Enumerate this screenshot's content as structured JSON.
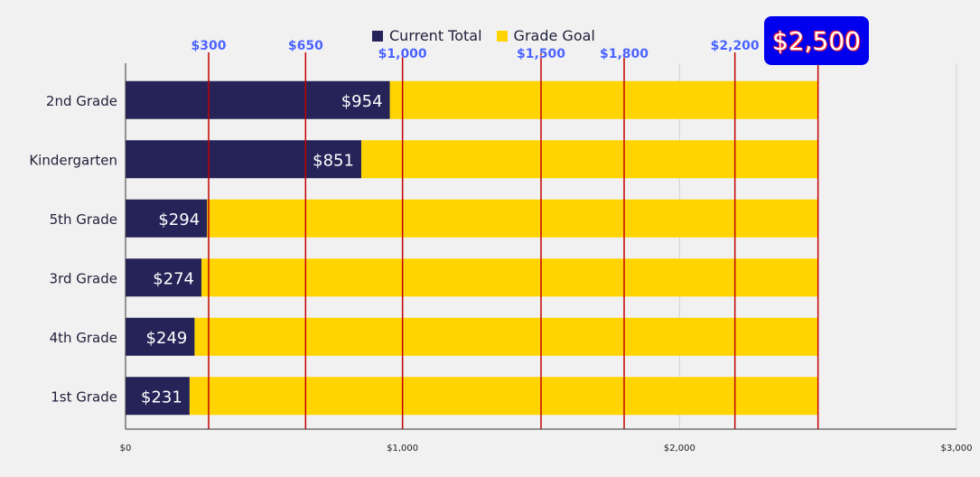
{
  "chart_data": {
    "type": "bar",
    "orientation": "horizontal",
    "stacked": true,
    "categories": [
      "2nd Grade",
      "Kindergarten",
      "5th Grade",
      "3rd Grade",
      "4th Grade",
      "1st Grade"
    ],
    "series": [
      {
        "name": "Current Total",
        "color": "#252357",
        "values": [
          954,
          851,
          294,
          274,
          249,
          231
        ],
        "data_labels": [
          "$954",
          "$851",
          "$294",
          "$274",
          "$249",
          "$231"
        ]
      },
      {
        "name": "Grade Goal",
        "color": "#ffd400",
        "total": 2500
      }
    ],
    "xlim": [
      0,
      3000
    ],
    "x_ticks": [
      0,
      1000,
      2000,
      3000
    ],
    "x_tick_labels": [
      "$0",
      "$1,000",
      "$2,000",
      "$3,000"
    ],
    "milestones": [
      {
        "value": 300,
        "label": "$300"
      },
      {
        "value": 650,
        "label": "$650"
      },
      {
        "value": 1000,
        "label": "$1,000"
      },
      {
        "value": 1500,
        "label": "$1,500"
      },
      {
        "value": 1800,
        "label": "$1,800"
      },
      {
        "value": 2200,
        "label": "$2,200"
      },
      {
        "value": 2500,
        "label": "$2,500"
      }
    ],
    "milestone_color": "#c40000",
    "grid": true,
    "legend_position": "top"
  }
}
